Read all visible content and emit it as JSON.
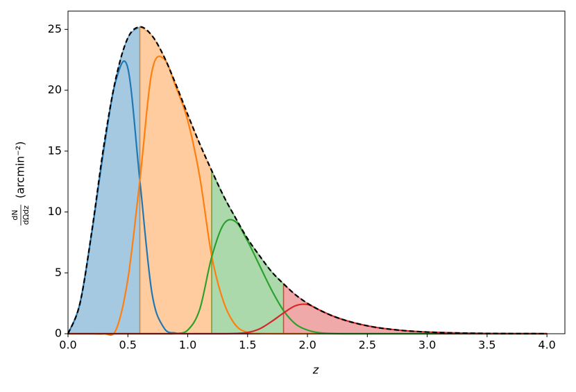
{
  "chart_data": {
    "type": "line",
    "xlabel": "z",
    "ylabel_fraction": [
      "dN",
      "dΩdz"
    ],
    "ylabel_units": "(arcmin⁻²)",
    "xlim": [
      0,
      4.15
    ],
    "ylim": [
      0,
      26.5
    ],
    "xticks": [
      {
        "value": 0,
        "label": "0.0"
      },
      0.5,
      {
        "value": 1,
        "label": "1.0"
      },
      1.5,
      {
        "value": 2,
        "label": "2.0"
      },
      2.5,
      {
        "value": 3,
        "label": "3.0"
      },
      3.5,
      {
        "value": 4,
        "label": "4.0"
      }
    ],
    "yticks": [
      0,
      5,
      10,
      15,
      20,
      25
    ],
    "bin_edges": [
      0,
      0.6,
      1.2,
      1.8,
      4.0
    ],
    "fill_opacity": 0.4,
    "x": [
      0,
      0.1,
      0.2,
      0.3,
      0.4,
      0.5,
      0.6,
      0.7,
      0.8,
      0.9,
      1.0,
      1.1,
      1.2,
      1.3,
      1.4,
      1.5,
      1.6,
      1.7,
      1.8,
      1.9,
      2.0,
      2.1,
      2.2,
      2.3,
      2.4,
      2.5,
      2.6,
      2.7,
      2.8,
      2.9,
      3.0,
      3.1,
      3.2,
      3.3,
      3.4,
      3.5,
      3.6,
      3.7,
      3.8,
      3.9,
      4.0
    ],
    "series": [
      {
        "color": "#1f77b4",
        "values": [
          0,
          2.5,
          8.4,
          15.2,
          20.8,
          21.8,
          12.6,
          3.4,
          0.5,
          0.05,
          0,
          0,
          0,
          0,
          0,
          0,
          0,
          0,
          0,
          0,
          0,
          0,
          0,
          0,
          0,
          0,
          0,
          0,
          0,
          0,
          0,
          0,
          0,
          0,
          0,
          0,
          0,
          0,
          0,
          0,
          0
        ]
      },
      {
        "color": "#ff7f0e",
        "values": [
          0,
          0,
          0,
          0,
          0.3,
          4.5,
          12.6,
          21.5,
          22.6,
          20.3,
          17.5,
          12.9,
          6.4,
          2.6,
          0.7,
          0.1,
          0.02,
          0,
          0,
          0,
          0,
          0,
          0,
          0,
          0,
          0,
          0,
          0,
          0,
          0,
          0,
          0,
          0,
          0,
          0,
          0,
          0,
          0,
          0,
          0,
          0
        ]
      },
      {
        "color": "#2ca02c",
        "values": [
          0,
          0,
          0,
          0,
          0,
          0,
          0,
          0,
          0,
          0.02,
          0.3,
          2.0,
          6.3,
          9.0,
          9.2,
          7.6,
          5.6,
          3.6,
          1.9,
          0.8,
          0.3,
          0.08,
          0.02,
          0,
          0,
          0,
          0,
          0,
          0,
          0,
          0,
          0,
          0,
          0,
          0,
          0,
          0,
          0,
          0,
          0,
          0
        ]
      },
      {
        "color": "#d62728",
        "values": [
          0,
          0,
          0,
          0,
          0,
          0,
          0,
          0,
          0,
          0,
          0,
          0,
          0,
          0,
          0.02,
          0.1,
          0.4,
          1.0,
          1.7,
          2.3,
          2.4,
          1.95,
          1.5,
          1.15,
          0.87,
          0.65,
          0.48,
          0.36,
          0.26,
          0.19,
          0.14,
          0.1,
          0.07,
          0.05,
          0.035,
          0.025,
          0.017,
          0.012,
          0.008,
          0.005,
          0.004
        ]
      }
    ],
    "total": {
      "color": "#000000",
      "line_style": "dashed",
      "values": [
        0,
        2.5,
        8.5,
        15.5,
        21,
        24.3,
        25.2,
        24.5,
        22.8,
        20.5,
        18,
        15.6,
        13.4,
        11.3,
        9.5,
        7.8,
        6.4,
        5.1,
        4.1,
        3.2,
        2.5,
        1.95,
        1.5,
        1.15,
        0.87,
        0.65,
        0.48,
        0.36,
        0.26,
        0.19,
        0.14,
        0.1,
        0.07,
        0.05,
        0.035,
        0.025,
        0.017,
        0.012,
        0.008,
        0.005,
        0.004
      ]
    }
  }
}
